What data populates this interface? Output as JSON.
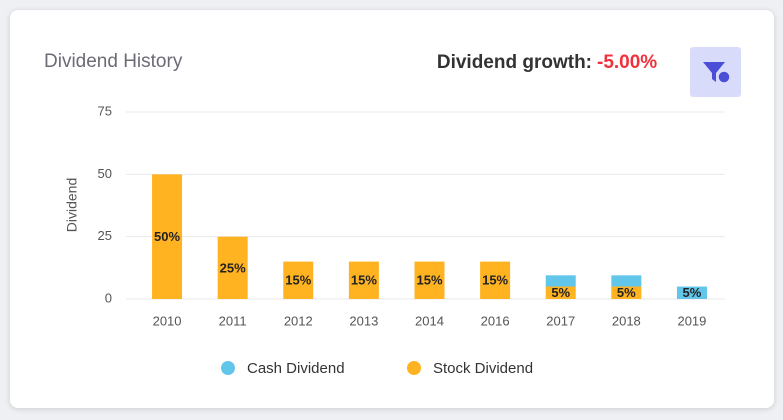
{
  "header": {
    "growth_label": "Dividend growth:",
    "growth_value": "-5.00%"
  },
  "chart_data": {
    "type": "bar",
    "stacked": true,
    "title": "Dividend History",
    "ylabel": "Dividend",
    "categories": [
      "2010",
      "2011",
      "2012",
      "2013",
      "2014",
      "2016",
      "2017",
      "2018",
      "2019"
    ],
    "series": [
      {
        "name": "Cash Dividend",
        "color": "#62c6ea",
        "values": [
          0,
          0,
          0,
          0,
          0,
          0,
          4.5,
          4.5,
          5
        ],
        "value_labels": [
          null,
          null,
          null,
          null,
          null,
          null,
          null,
          null,
          "5%"
        ]
      },
      {
        "name": "Stock Dividend",
        "color": "#ffb321",
        "values": [
          50,
          25,
          15,
          15,
          15,
          15,
          5,
          5,
          0
        ],
        "value_labels": [
          "50%",
          "25%",
          "15%",
          "15%",
          "15%",
          "15%",
          "5%",
          "5%",
          null
        ]
      }
    ],
    "ylim": [
      0,
      75
    ],
    "yticks": [
      0,
      25,
      50,
      75
    ],
    "grid": true
  }
}
